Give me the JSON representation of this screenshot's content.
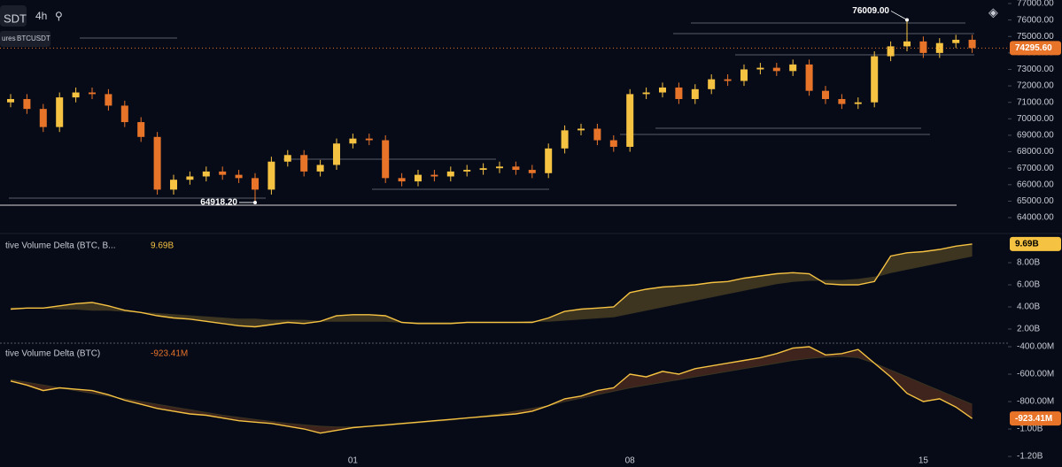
{
  "header": {
    "symbol": "SDT",
    "interval": "4h",
    "market": "ures",
    "pair": "BTCUSDT"
  },
  "chart_data": [
    {
      "type": "candlestick",
      "up_color": "#f5c242",
      "down_color": "#e8742a",
      "ylim": [
        63250,
        77215
      ],
      "yticks": [
        {
          "value": 64000,
          "label": "64000.00"
        },
        {
          "value": 65000,
          "label": "65000.00"
        },
        {
          "value": 66000,
          "label": "66000.00"
        },
        {
          "value": 67000,
          "label": "67000.00"
        },
        {
          "value": 68000,
          "label": "68000.00"
        },
        {
          "value": 69000,
          "label": "69000.00"
        },
        {
          "value": 70000,
          "label": "70000.00"
        },
        {
          "value": 71000,
          "label": "71000.00"
        },
        {
          "value": 72000,
          "label": "72000.00"
        },
        {
          "value": 73000,
          "label": "73000.00"
        },
        {
          "value": 74000,
          "label": "74000.00"
        },
        {
          "value": 75000,
          "label": "75000.00"
        },
        {
          "value": 76000,
          "label": "76000.00"
        },
        {
          "value": 77000,
          "label": "77000.00"
        }
      ],
      "xtick_labels": [
        "01",
        "08",
        "15"
      ],
      "open": [
        71000,
        71200,
        70600,
        69500,
        71300,
        71600,
        71500,
        70800,
        69800,
        68900,
        65700,
        66300,
        66500,
        66800,
        66600,
        66400,
        65700,
        67400,
        67800,
        66800,
        67200,
        68500,
        68800,
        68700,
        66400,
        66200,
        66600,
        66500,
        66800,
        66900,
        67000,
        67100,
        66900,
        66700,
        68200,
        69300,
        69400,
        68700,
        68300,
        71500,
        71600,
        71900,
        71200,
        71800,
        72400,
        72300,
        73000,
        73100,
        72900,
        73300,
        71700,
        71200,
        70900,
        71000,
        73800,
        74400,
        74700,
        74000,
        74600,
        74800
      ],
      "high": [
        71500,
        71500,
        70900,
        71600,
        71900,
        71900,
        71800,
        71100,
        70100,
        69200,
        66600,
        66800,
        67100,
        67100,
        66900,
        66700,
        67700,
        68100,
        68100,
        67500,
        68800,
        69100,
        69100,
        69000,
        66700,
        66900,
        66900,
        67100,
        67200,
        67300,
        67400,
        67400,
        67200,
        68500,
        69600,
        69700,
        69700,
        69000,
        71800,
        71900,
        72200,
        72200,
        72100,
        72700,
        72700,
        73300,
        73400,
        73400,
        73600,
        73600,
        72000,
        71500,
        71300,
        74100,
        74700,
        76009,
        75000,
        74900,
        75100,
        75100
      ],
      "low": [
        70700,
        70300,
        69200,
        69200,
        71000,
        71200,
        70500,
        69500,
        68600,
        65400,
        65400,
        66000,
        66200,
        66300,
        66100,
        64918.2,
        65400,
        67100,
        66500,
        66500,
        66900,
        68200,
        68400,
        66100,
        65900,
        65900,
        66200,
        66200,
        66500,
        66600,
        66700,
        66600,
        66400,
        66400,
        67900,
        69000,
        68400,
        68000,
        68000,
        71200,
        71300,
        70900,
        70900,
        71500,
        72000,
        72000,
        72700,
        72600,
        72600,
        71400,
        70900,
        70600,
        70600,
        70700,
        73500,
        74100,
        73700,
        73700,
        74300,
        74000
      ],
      "close": [
        71200,
        70600,
        69500,
        71300,
        71600,
        71500,
        70800,
        69800,
        68900,
        65700,
        66300,
        66500,
        66800,
        66600,
        66400,
        65700,
        67400,
        67800,
        66800,
        67200,
        68500,
        68800,
        68700,
        66400,
        66200,
        66600,
        66500,
        66800,
        66900,
        67000,
        67100,
        66900,
        66700,
        68200,
        69300,
        69400,
        68700,
        68300,
        71500,
        71600,
        71900,
        71200,
        71800,
        72400,
        72300,
        73000,
        73100,
        72900,
        73300,
        71700,
        71200,
        70900,
        71000,
        73800,
        74400,
        74700,
        74000,
        74600,
        74800,
        74295.6
      ],
      "annotations": [
        {
          "value": 76009,
          "label": "76009.00"
        },
        {
          "value": 64918.2,
          "label": "64918.20"
        }
      ],
      "last_price": {
        "value": 74295.6,
        "label": "74295.60"
      }
    },
    {
      "type": "area",
      "title": "tive Volume Delta (BTC, B...",
      "line_color": "#f5c242",
      "ylim": [
        0.72,
        10.32
      ],
      "yticks": [
        {
          "value": 2,
          "label": "2.00B"
        },
        {
          "value": 4,
          "label": "4.00B"
        },
        {
          "value": 6,
          "label": "6.00B"
        },
        {
          "value": 8,
          "label": "8.00B"
        }
      ],
      "series": [
        {
          "values": [
            3.8,
            3.9,
            3.9,
            4.1,
            4.3,
            4.4,
            4.1,
            3.7,
            3.5,
            3.2,
            3.0,
            2.9,
            2.7,
            2.5,
            2.3,
            2.2,
            2.4,
            2.6,
            2.5,
            2.7,
            3.2,
            3.3,
            3.3,
            3.2,
            2.6,
            2.5,
            2.5,
            2.5,
            2.6,
            2.6,
            2.6,
            2.6,
            2.6,
            3.0,
            3.6,
            3.8,
            3.9,
            4.0,
            5.3,
            5.6,
            5.8,
            5.9,
            6.0,
            6.2,
            6.3,
            6.6,
            6.8,
            7.0,
            7.1,
            7.0,
            6.1,
            6.0,
            6.0,
            6.3,
            8.6,
            8.9,
            9.0,
            9.2,
            9.5,
            9.69
          ],
          "last_label": "9.69B"
        },
        {
          "values": [
            3.9,
            3.9,
            3.9,
            3.8,
            3.8,
            3.7,
            3.7,
            3.6,
            3.5,
            3.4,
            3.3,
            3.2,
            3.1,
            3.0,
            2.9,
            2.9,
            2.8,
            2.8,
            2.8,
            2.7,
            2.7,
            2.7,
            2.7,
            2.7,
            2.6,
            2.6,
            2.6,
            2.6,
            2.6,
            2.6,
            2.6,
            2.6,
            2.7,
            2.7,
            2.8,
            2.9,
            3.0,
            3.1,
            3.4,
            3.7,
            4.0,
            4.3,
            4.6,
            4.9,
            5.2,
            5.5,
            5.8,
            6.1,
            6.3,
            6.4,
            6.4,
            6.4,
            6.5,
            6.7,
            7.1,
            7.4,
            7.7,
            8.0,
            8.3,
            8.6
          ]
        }
      ]
    },
    {
      "type": "area",
      "title": "tive Volume Delta (BTC)",
      "line_color": "#f5c242",
      "ylim": [
        -1277,
        -387
      ],
      "yticks": [
        {
          "value": -400,
          "label": "-400.00M"
        },
        {
          "value": -600,
          "label": "-600.00M"
        },
        {
          "value": -800,
          "label": "-800.00M"
        },
        {
          "value": -1000,
          "label": "-1.00B"
        },
        {
          "value": -1200,
          "label": "-1.20B"
        }
      ],
      "series": [
        {
          "values": [
            -650,
            -680,
            -720,
            -700,
            -710,
            -720,
            -750,
            -790,
            -820,
            -850,
            -870,
            -890,
            -900,
            -920,
            -940,
            -950,
            -960,
            -980,
            -1000,
            -1030,
            -1010,
            -990,
            -980,
            -970,
            -960,
            -950,
            -940,
            -930,
            -920,
            -910,
            -900,
            -890,
            -870,
            -830,
            -780,
            -760,
            -720,
            -700,
            -600,
            -620,
            -580,
            -600,
            -560,
            -540,
            -520,
            -500,
            -480,
            -450,
            -410,
            -400,
            -460,
            -450,
            -420,
            -520,
            -620,
            -740,
            -800,
            -780,
            -840,
            -923.41
          ],
          "last_label": "-923.41M"
        },
        {
          "values": [
            -640,
            -660,
            -680,
            -700,
            -720,
            -740,
            -760,
            -780,
            -800,
            -820,
            -840,
            -860,
            -880,
            -900,
            -915,
            -930,
            -945,
            -960,
            -970,
            -980,
            -985,
            -985,
            -980,
            -975,
            -965,
            -955,
            -945,
            -935,
            -920,
            -905,
            -890,
            -870,
            -850,
            -830,
            -800,
            -775,
            -750,
            -725,
            -700,
            -680,
            -660,
            -640,
            -620,
            -600,
            -580,
            -560,
            -540,
            -520,
            -500,
            -485,
            -475,
            -470,
            -480,
            -520,
            -570,
            -620,
            -670,
            -720,
            -770,
            -820
          ]
        }
      ]
    }
  ]
}
